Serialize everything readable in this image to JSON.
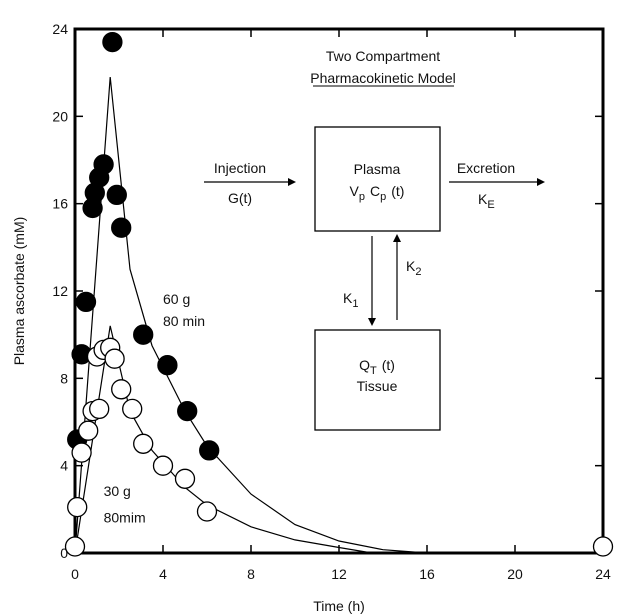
{
  "chart_data": {
    "type": "scatter",
    "xlabel": "Time (h)",
    "ylabel": "Plasma ascorbate (mM)",
    "xlim": [
      0,
      24
    ],
    "ylim": [
      0,
      24
    ],
    "x_ticks": [
      0,
      4,
      8,
      12,
      16,
      20,
      24
    ],
    "y_ticks": [
      0,
      4,
      8,
      12,
      16,
      20,
      24
    ],
    "grid": false,
    "series": [
      {
        "name": "60 g\n80 min",
        "marker": "filled-circle",
        "points": [
          [
            0.1,
            5.2
          ],
          [
            0.3,
            9.1
          ],
          [
            0.5,
            11.5
          ],
          [
            0.8,
            15.8
          ],
          [
            0.9,
            16.5
          ],
          [
            1.1,
            17.2
          ],
          [
            1.3,
            17.8
          ],
          [
            1.7,
            23.4
          ],
          [
            1.9,
            16.4
          ],
          [
            2.1,
            14.9
          ],
          [
            3.1,
            10.0
          ],
          [
            4.2,
            8.6
          ],
          [
            5.1,
            6.5
          ],
          [
            6.1,
            4.7
          ]
        ],
        "curve": [
          [
            0,
            0
          ],
          [
            1.6,
            21.8
          ],
          [
            2.5,
            13.0
          ],
          [
            3.5,
            9.5
          ],
          [
            5,
            6.5
          ],
          [
            6,
            4.9
          ],
          [
            8,
            2.7
          ],
          [
            10,
            1.3
          ],
          [
            12,
            0.55
          ],
          [
            14,
            0.15
          ],
          [
            16,
            0.0
          ]
        ]
      },
      {
        "name": "30 g\n80mim",
        "marker": "open-circle",
        "points": [
          [
            0.1,
            2.1
          ],
          [
            0.3,
            4.6
          ],
          [
            0.6,
            5.6
          ],
          [
            0.8,
            6.5
          ],
          [
            1.1,
            6.6
          ],
          [
            1.0,
            9.0
          ],
          [
            1.3,
            9.3
          ],
          [
            1.6,
            9.4
          ],
          [
            1.8,
            8.9
          ],
          [
            2.1,
            7.5
          ],
          [
            2.6,
            6.6
          ],
          [
            3.1,
            5.0
          ],
          [
            4.0,
            4.0
          ],
          [
            5.0,
            3.4
          ],
          [
            6.0,
            1.9
          ],
          [
            0.0,
            0.3
          ],
          [
            24.0,
            0.3
          ]
        ],
        "curve": [
          [
            0,
            0
          ],
          [
            1.6,
            10.4
          ],
          [
            2.5,
            6.5
          ],
          [
            3.5,
            4.7
          ],
          [
            5,
            3.0
          ],
          [
            6,
            2.2
          ],
          [
            8,
            1.2
          ],
          [
            10,
            0.6
          ],
          [
            12,
            0.25
          ],
          [
            13.5,
            0.0
          ]
        ]
      }
    ],
    "annotations": [
      {
        "text": "60 g",
        "x": 4.0,
        "y": 11.4
      },
      {
        "text": "80 min",
        "x": 4.0,
        "y": 10.4
      },
      {
        "text": "30 g",
        "x": 1.3,
        "y": 2.6
      },
      {
        "text": "80mim",
        "x": 1.3,
        "y": 1.4
      }
    ]
  },
  "diagram": {
    "title_line1": "Two Compartment",
    "title_line2": "Pharmacokinetic Model",
    "injection_label": "Injection",
    "injection_func": "G(t)",
    "plasma_title": "Plasma",
    "plasma_v": "V",
    "plasma_v_sub": "p",
    "plasma_c": "C",
    "plasma_c_sub": "p",
    "plasma_t": "(t)",
    "excretion_label": "Excretion",
    "ke_main": "K",
    "ke_sub": "E",
    "k1_main": "K",
    "k1_sub": "1",
    "k2_main": "K",
    "k2_sub": "2",
    "tissue_q": "Q",
    "tissue_q_sub": "T",
    "tissue_t": "(t)",
    "tissue_label": "Tissue"
  }
}
